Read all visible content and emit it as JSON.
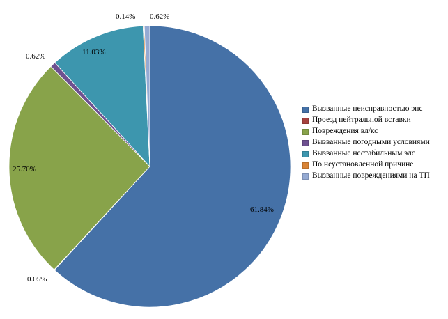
{
  "chart_data": {
    "type": "pie",
    "title": "",
    "series": [
      {
        "name": "Вызванные неисправностью эпс",
        "value": 61.84,
        "label": "61.84%",
        "color": "#4571A7"
      },
      {
        "name": "Проезд нейтральной вставки",
        "value": 0.05,
        "label": "0.05%",
        "color": "#A6423F"
      },
      {
        "name": "Повреждения вл/кс",
        "value": 25.7,
        "label": "25.70%",
        "color": "#88A34A"
      },
      {
        "name": "Вызванные погодными условиями",
        "value": 0.62,
        "label": "0.62%",
        "color": "#6E5090"
      },
      {
        "name": "Вызванные нестабильным элс",
        "value": 11.03,
        "label": "11.03%",
        "color": "#3D96AE"
      },
      {
        "name": "По неустановленной причине",
        "value": 0.14,
        "label": "0.14%",
        "color": "#D98436"
      },
      {
        "name": "Вызванные повреждениями на ТП",
        "value": 0.62,
        "label": "0.62%",
        "color": "#95AAD3"
      }
    ],
    "start_angle": "12 o'clock",
    "direction": "clockwise",
    "legend_position": "right"
  }
}
